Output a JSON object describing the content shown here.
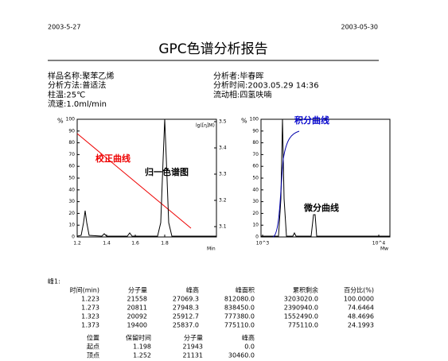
{
  "header": {
    "date_left": "2003-5-27",
    "date_right": "2003-05-30",
    "title": "GPC色谱分析报告"
  },
  "info": [
    [
      "样品名称:聚苯乙烯",
      "分析者:毕春晖"
    ],
    [
      "分析方法:普适法",
      "分析时间:2003.05.29  14:36"
    ],
    [
      "柱温:25℃",
      "流动相:四氢呋喃"
    ],
    [
      "流速:1.0ml/min"
    ]
  ],
  "chart_left": {
    "y_label": "%",
    "yticks": [
      "100",
      "90",
      "80",
      "70",
      "60",
      "50",
      "40",
      "30",
      "20",
      "10",
      "0"
    ],
    "y2_label": "lg([η]M)",
    "y2ticks": [
      "3.5",
      "3.4",
      "3.3",
      "3.2",
      "3.1"
    ],
    "xticks": [
      "1.2",
      "1.4",
      "1.6",
      "1.8"
    ],
    "x_label": "Min",
    "annotations": [
      "校正曲线",
      "归一色谱图"
    ]
  },
  "chart_right": {
    "y_label": "%",
    "yticks": [
      "100",
      "90",
      "80",
      "70",
      "60",
      "50",
      "40",
      "30",
      "20",
      "10",
      "0"
    ],
    "xticks": [
      "10^3",
      "10^4"
    ],
    "x_label": "Mw",
    "annotations": [
      "积分曲线",
      "微分曲线"
    ]
  },
  "peak_table": {
    "title": "峰1:",
    "columns": [
      "时间(min)",
      "分子量",
      "峰高",
      "峰面积",
      "累积剩余",
      "百分比(%)"
    ],
    "rows": [
      [
        "1.223",
        "21558",
        "27069.3",
        "812080.0",
        "3203020.0",
        "100.0000"
      ],
      [
        "1.273",
        "20811",
        "27948.3",
        "838450.0",
        "2390940.0",
        "74.6464"
      ],
      [
        "1.323",
        "20092",
        "25912.7",
        "777380.0",
        "1552490.0",
        "48.4696"
      ],
      [
        "1.373",
        "19400",
        "25837.0",
        "775110.0",
        "775110.0",
        "24.1993"
      ]
    ]
  },
  "point_table": {
    "columns": [
      "位置",
      "保留时间",
      "分子量",
      "峰高"
    ],
    "rows": [
      [
        "起点",
        "1.198",
        "21943",
        "0.0"
      ],
      [
        "顶点",
        "1.252",
        "21131",
        "30460.0"
      ]
    ]
  }
}
